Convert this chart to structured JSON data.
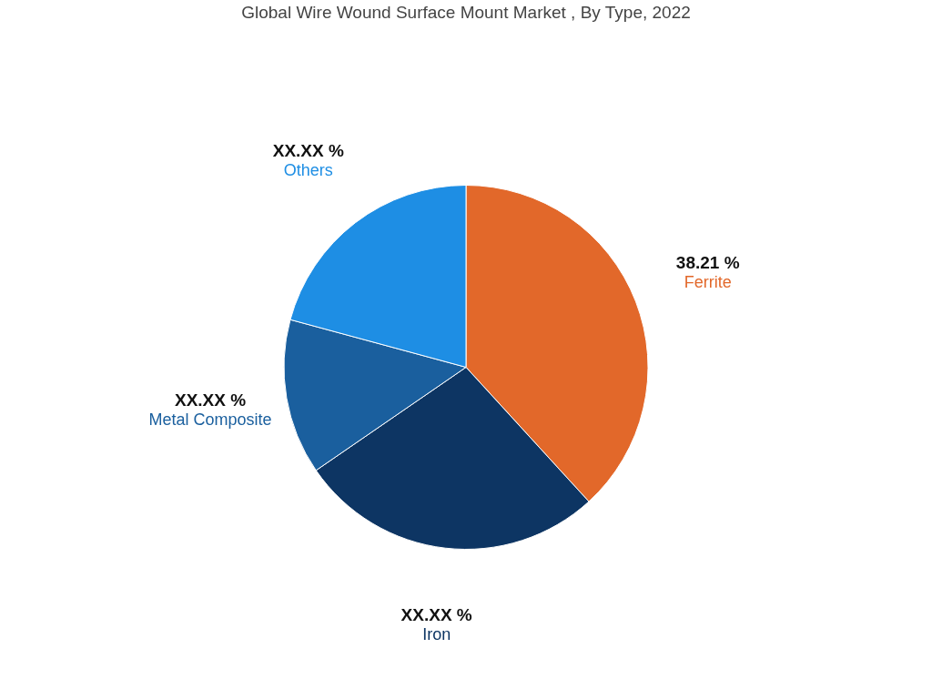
{
  "chart_data": {
    "type": "pie",
    "title": "Global Wire Wound Surface Mount Market , By Type, 2022",
    "categories": [
      "Ferrite",
      "Iron",
      "Metal Composite",
      "Others"
    ],
    "values": [
      38.21,
      27.2,
      13.8,
      20.79
    ],
    "value_labels": [
      "38.21 %",
      "XX.XX %",
      "XX.XX %",
      "XX.XX %"
    ],
    "colors": [
      "#e2682a",
      "#0d3563",
      "#1a5f9e",
      "#1e8ee4"
    ],
    "legend": false
  }
}
